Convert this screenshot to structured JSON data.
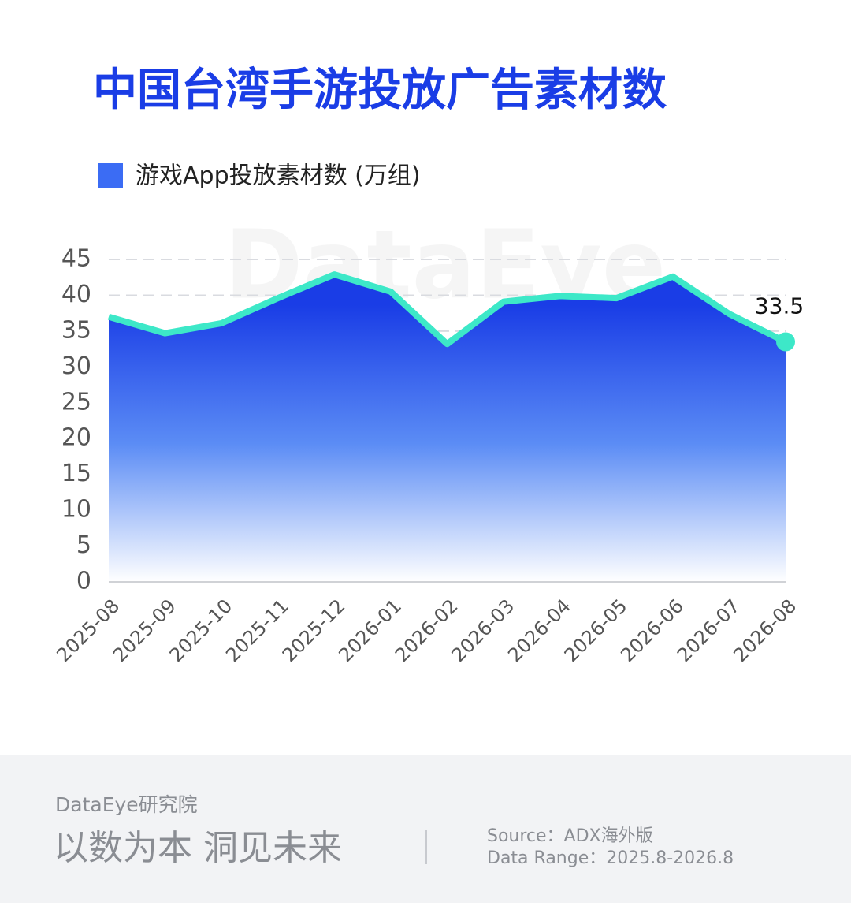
{
  "chart_data": {
    "type": "area",
    "title": "中国台湾手游投放广告素材数",
    "watermark": "DataEye",
    "categories": [
      "2025-08",
      "2025-09",
      "2025-10",
      "2025-11",
      "2025-12",
      "2026-01",
      "2026-02",
      "2026-03",
      "2026-04",
      "2026-05",
      "2026-06",
      "2026-07",
      "2026-08"
    ],
    "series": [
      {
        "name": "游戏App投放素材数 (万组)",
        "color": "#3de8c8",
        "legend_color": "#3b6cf4",
        "fill_top": "#1a3de6",
        "fill_bottom": "#ffffff",
        "values": [
          37,
          34.7,
          36.1,
          39.6,
          42.9,
          40.5,
          33.2,
          39.1,
          39.9,
          39.6,
          42.6,
          37.4,
          33.5
        ]
      }
    ],
    "ylim": [
      0,
      45
    ],
    "yticks": [
      0,
      5,
      10,
      15,
      20,
      25,
      30,
      35,
      40,
      45
    ],
    "grid": true
  },
  "footer": {
    "brand": "DataEye研究院",
    "slogan": "以数为本 洞见未来",
    "source": "Source：ADX海外版",
    "range": "Data Range：2025.8-2026.8"
  }
}
